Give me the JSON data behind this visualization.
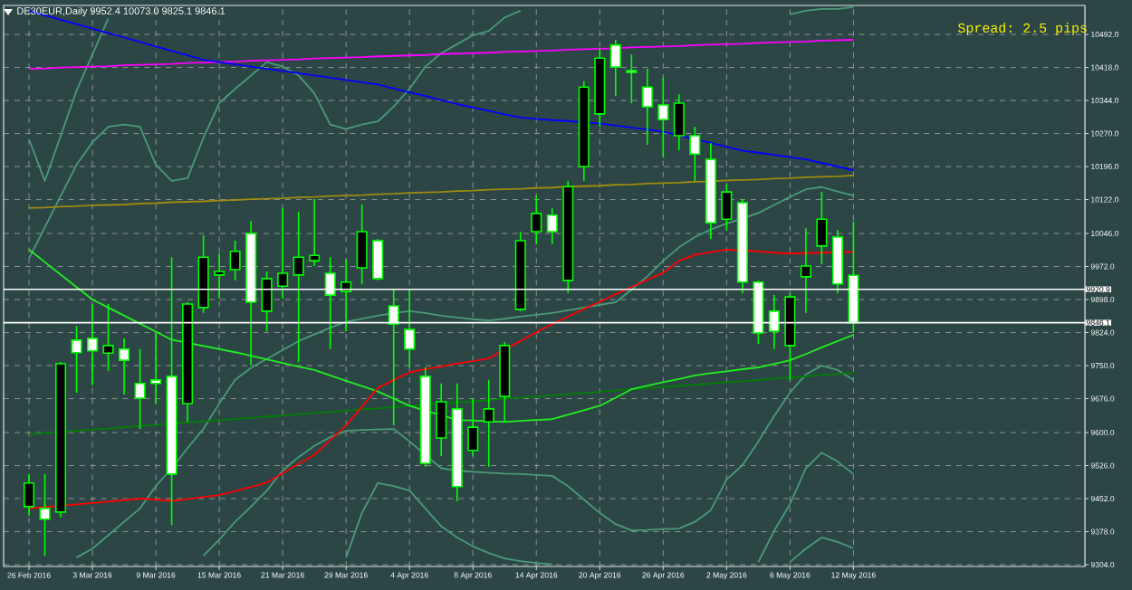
{
  "chart_data": {
    "type": "candlestick",
    "title": "DE30EUR,Daily  9952.4 10073.0 9825.1 9846.1",
    "annotations": [
      "Spread: 2.5 pips"
    ],
    "categories": [
      "26 Feb 2016",
      null,
      null,
      null,
      "3 Mar 2016",
      null,
      null,
      null,
      "9 Mar 2016",
      null,
      null,
      null,
      "15 Mar 2016",
      null,
      null,
      null,
      "21 Mar 2016",
      null,
      null,
      null,
      "29 Mar 2016",
      null,
      null,
      null,
      "4 Apr 2016",
      null,
      null,
      null,
      "8 Apr 2016",
      null,
      null,
      null,
      "14 Apr 2016",
      null,
      null,
      null,
      "20 Apr 2016",
      null,
      null,
      null,
      "26 Apr 2016",
      null,
      null,
      null,
      "2 May 2016",
      null,
      null,
      null,
      "6 May 2016",
      null,
      null,
      null,
      "12 May 2016"
    ],
    "ylim": [
      9300,
      10557
    ],
    "yticks": [
      {
        "value": 10492,
        "label": "10492.0"
      },
      {
        "value": 10418,
        "label": "10418.0"
      },
      {
        "value": 10344,
        "label": "10344.0"
      },
      {
        "value": 10270,
        "label": "10270.0"
      },
      {
        "value": 10196,
        "label": "10196.0"
      },
      {
        "value": 10122,
        "label": "10122.0"
      },
      {
        "value": 10046,
        "label": "10046.0"
      },
      {
        "value": 9972,
        "label": "9972.0"
      },
      {
        "value": 9898,
        "label": "9898.0"
      },
      {
        "value": 9824,
        "label": "9824.0"
      },
      {
        "value": 9750,
        "label": "9750.0"
      },
      {
        "value": 9676,
        "label": "9676.0"
      },
      {
        "value": 9600,
        "label": "9600.0"
      },
      {
        "value": 9526,
        "label": "9526.0"
      },
      {
        "value": 9452,
        "label": "9452.0"
      },
      {
        "value": 9378,
        "label": "9378.0"
      },
      {
        "value": 9304,
        "label": "9304.0"
      }
    ],
    "grid": true,
    "ref_lines": [
      {
        "axis": "y",
        "value": 9920.9,
        "label": "9920.9",
        "color": "#ffffff"
      },
      {
        "axis": "y",
        "value": 9846.1,
        "label": "9846.1",
        "color": "#ffffff"
      }
    ],
    "series": [
      {
        "type": "line",
        "color": "#4a9a78",
        "values": [
          10257,
          10164,
          10265,
          10366,
          10447,
          10528,
          null,
          null,
          null,
          null,
          null,
          null,
          null,
          null,
          null,
          null,
          null,
          null,
          null,
          null,
          null,
          null,
          null,
          null,
          null,
          null,
          null,
          null,
          null,
          null,
          null,
          null,
          null,
          null,
          null,
          null,
          null,
          null,
          null,
          null,
          null,
          null,
          null,
          null,
          null,
          null,
          null,
          null,
          null,
          null,
          null,
          null,
          null
        ]
      },
      {
        "type": "line",
        "color": "#4a9a78",
        "values": [
          9990,
          10060,
          10130,
          10200,
          10250,
          10285,
          10290,
          10285,
          10200,
          10164,
          10170,
          10260,
          10338,
          10370,
          10400,
          10430,
          10420,
          10400,
          10360,
          10290,
          10280,
          10290,
          10297,
          10330,
          10370,
          10420,
          10450,
          10470,
          10490,
          10500,
          10530,
          10545,
          null,
          null,
          null,
          null,
          null,
          null,
          null,
          null,
          null,
          null,
          null,
          null,
          null,
          null,
          null,
          null,
          10537,
          10545,
          10549,
          10549,
          10553
        ]
      },
      {
        "type": "line",
        "color": "#4a9a78",
        "values": [
          null,
          null,
          null,
          9320,
          9340,
          9370,
          9400,
          9430,
          9480,
          9520,
          9565,
          9608,
          9665,
          9718,
          9745,
          9765,
          9785,
          9805,
          9820,
          9835,
          9848,
          9855,
          9862,
          9868,
          9872,
          9868,
          9862,
          9858,
          9854,
          9851,
          9855,
          9860,
          9864,
          9868,
          9874,
          9880,
          9886,
          9892,
          9920,
          9950,
          9985,
          10015,
          10038,
          10055,
          10068,
          10080,
          10092,
          10110,
          10128,
          10145,
          10150,
          10140,
          10131
        ]
      },
      {
        "type": "line",
        "color": "#4a9a78",
        "values": [
          null,
          null,
          null,
          null,
          null,
          null,
          null,
          null,
          null,
          null,
          null,
          9324,
          9360,
          9400,
          9434,
          9470,
          9515,
          9545,
          9570,
          9590,
          9604,
          9606,
          9607,
          9608,
          9580,
          9550,
          9520,
          9515,
          9512,
          9510,
          9508,
          9507,
          9505,
          9503,
          9480,
          9450,
          9420,
          9395,
          9381,
          9382,
          9384,
          9385,
          9400,
          9426,
          9495,
          9527,
          9580,
          9637,
          9690,
          9730,
          9750,
          9740,
          9718
        ]
      },
      {
        "type": "line",
        "color": "#4a9a78",
        "values": [
          null,
          null,
          null,
          null,
          null,
          null,
          null,
          null,
          null,
          null,
          null,
          null,
          null,
          null,
          null,
          null,
          null,
          null,
          null,
          null,
          9320,
          9420,
          9487,
          9480,
          9470,
          9430,
          9390,
          9365,
          9345,
          9330,
          9318,
          9312,
          9308,
          9305,
          null,
          null,
          null,
          null,
          null,
          null,
          null,
          null,
          null,
          null,
          null,
          null,
          9310,
          9380,
          9440,
          9520,
          9555,
          9535,
          9507
        ]
      },
      {
        "type": "line",
        "color": "#4a9a78",
        "values": [
          null,
          null,
          null,
          null,
          null,
          null,
          null,
          null,
          null,
          null,
          null,
          null,
          null,
          null,
          null,
          null,
          null,
          null,
          null,
          null,
          null,
          null,
          null,
          null,
          null,
          null,
          null,
          null,
          null,
          null,
          null,
          null,
          null,
          null,
          null,
          null,
          null,
          null,
          null,
          null,
          null,
          null,
          null,
          null,
          null,
          null,
          null,
          null,
          9310,
          9340,
          9365,
          9355,
          9341
        ]
      },
      {
        "type": "line",
        "color": "#ff00ff",
        "values": [
          10415,
          10416,
          10418,
          10419,
          10420,
          10421,
          10423,
          10424,
          10425,
          10426,
          10428,
          10429,
          10430,
          10431,
          10433,
          10434,
          10435,
          10436,
          10438,
          10439,
          10440,
          10441,
          10443,
          10444,
          10445,
          10446,
          10448,
          10449,
          10450,
          10451,
          10453,
          10454,
          10455,
          10456,
          10458,
          10459,
          10460,
          10461,
          10463,
          10464,
          10465,
          10466,
          10468,
          10469,
          10470,
          10471,
          10473,
          10474,
          10475,
          10476,
          10478,
          10479,
          10480
        ]
      },
      {
        "type": "line",
        "color": "#0000ff",
        "values": [
          10545,
          10535,
          10525,
          10515,
          10505,
          10495,
          10485,
          10475,
          10465,
          10455,
          10445,
          10435,
          10430,
          10425,
          10420,
          10415,
          10410,
          10405,
          10400,
          10395,
          10390,
          10385,
          10380,
          10371,
          10362,
          10354,
          10345,
          10336,
          10328,
          10321,
          10313,
          10306,
          10303,
          10300,
          10298,
          10295,
          10292,
          10288,
          10283,
          10279,
          10274,
          10266,
          10257,
          10249,
          10240,
          10232,
          10227,
          10222,
          10217,
          10212,
          10204,
          10196,
          10188
        ]
      },
      {
        "type": "line",
        "color": "#a08a10",
        "values": [
          10103,
          10104,
          10106,
          10107,
          10109,
          10110,
          10111,
          10113,
          10114,
          10116,
          10117,
          10118,
          10120,
          10121,
          10123,
          10124,
          10125,
          10127,
          10128,
          10130,
          10131,
          10132,
          10134,
          10135,
          10137,
          10138,
          10139,
          10141,
          10142,
          10144,
          10145,
          10146,
          10148,
          10149,
          10151,
          10152,
          10153,
          10155,
          10156,
          10158,
          10159,
          10160,
          10162,
          10163,
          10165,
          10166,
          10167,
          10169,
          10170,
          10172,
          10173,
          10174,
          10176
        ]
      },
      {
        "type": "line",
        "color": "#008000",
        "values": [
          9596,
          9599,
          9601,
          9604,
          9607,
          9609,
          9612,
          9615,
          9617,
          9620,
          9623,
          9625,
          9628,
          9630,
          9633,
          9636,
          9638,
          9641,
          9644,
          9646,
          9649,
          9652,
          9654,
          9657,
          9660,
          9662,
          9665,
          9668,
          9670,
          9673,
          9676,
          9678,
          9681,
          9683,
          9686,
          9689,
          9691,
          9694,
          9697,
          9699,
          9702,
          9705,
          9707,
          9710,
          9713,
          9715,
          9718,
          9721,
          9723,
          9726,
          9729,
          9731,
          9734
        ]
      },
      {
        "type": "line",
        "color": "#22ee22",
        "values": [
          10010,
          9982,
          9954,
          9926,
          9898,
          9880,
          9862,
          9844,
          9826,
          9808,
          9801,
          9794,
          9787,
          9780,
          9772,
          9764,
          9756,
          9748,
          9740,
          9728,
          9716,
          9704,
          9692,
          9676,
          9660,
          9649,
          9639,
          9628,
          9627,
          9625,
          9624,
          9626,
          9628,
          9630,
          9640,
          9650,
          9660,
          9678,
          9697,
          9705,
          9713,
          9720,
          9728,
          9733,
          9737,
          9742,
          9746,
          9754,
          9762,
          9776,
          9791,
          9805,
          9819
        ]
      },
      {
        "type": "line",
        "color": "#ff0000",
        "values": [
          9430,
          9433,
          9436,
          9439,
          9442,
          9445,
          9449,
          9452,
          9450,
          9447,
          9451,
          9456,
          9460,
          9469,
          9478,
          9488,
          9509,
          9530,
          9550,
          9583,
          9616,
          9658,
          9700,
          9718,
          9735,
          9742,
          9748,
          9755,
          9760,
          9766,
          9786,
          9805,
          9825,
          9843,
          9860,
          9877,
          9893,
          9910,
          9926,
          9942,
          9958,
          9985,
          9998,
          10004,
          10010,
          10008,
          10006,
          10003,
          10001,
          10002,
          10003,
          10004,
          10005
        ]
      },
      {
        "color": "#00ff00",
        "ohlc": [
          [
            9434,
            9507,
            9414,
            9487
          ],
          [
            9430,
            9507,
            9324,
            9406
          ],
          [
            9422,
            9758,
            9410,
            9754
          ],
          [
            9807,
            9839,
            9689,
            9779
          ],
          [
            9811,
            9888,
            9706,
            9783
          ],
          [
            9778,
            9888,
            9738,
            9795
          ],
          [
            9787,
            9811,
            9685,
            9762
          ],
          [
            9710,
            9787,
            9608,
            9677
          ],
          [
            9718,
            9827,
            9665,
            9710
          ],
          [
            9726,
            9993,
            9393,
            9507
          ],
          [
            9665,
            9892,
            9624,
            9888
          ],
          [
            9880,
            10042,
            9868,
            9993
          ],
          [
            9953,
            10001,
            9900,
            9961
          ],
          [
            9965,
            10030,
            9941,
            10006
          ],
          [
            10046,
            10074,
            9750,
            9892
          ],
          [
            9872,
            9961,
            9827,
            9945
          ],
          [
            9928,
            10103,
            9900,
            9957
          ],
          [
            9953,
            10095,
            9758,
            9993
          ],
          [
            9985,
            10123,
            9973,
            9997
          ],
          [
            9957,
            9993,
            9787,
            9908
          ],
          [
            9916,
            9989,
            9827,
            9937
          ],
          [
            9969,
            10111,
            9933,
            10050
          ],
          [
            10030,
            10034,
            9941,
            9945
          ],
          [
            9884,
            9920,
            9616,
            9843
          ],
          [
            9831,
            9920,
            9746,
            9787
          ],
          [
            9726,
            9746,
            9523,
            9531
          ],
          [
            9588,
            9710,
            9547,
            9669
          ],
          [
            9653,
            9710,
            9446,
            9479
          ],
          [
            9560,
            9677,
            9547,
            9612
          ],
          [
            9624,
            9718,
            9523,
            9653
          ],
          [
            9681,
            9803,
            9624,
            9795
          ],
          [
            9876,
            10050,
            9872,
            10030
          ],
          [
            10050,
            10131,
            10022,
            10091
          ],
          [
            10087,
            10103,
            10022,
            10050
          ],
          [
            9941,
            10164,
            9912,
            10151
          ],
          [
            10196,
            10387,
            10164,
            10374
          ],
          [
            10314,
            10460,
            10285,
            10439
          ],
          [
            10468,
            10480,
            10354,
            10419
          ],
          [
            10411,
            10447,
            10338,
            10407
          ],
          [
            10374,
            10415,
            10245,
            10330
          ],
          [
            10334,
            10395,
            10216,
            10301
          ],
          [
            10265,
            10358,
            10233,
            10338
          ],
          [
            10265,
            10285,
            10164,
            10224
          ],
          [
            10212,
            10249,
            10034,
            10070
          ],
          [
            10078,
            10156,
            10054,
            10139
          ],
          [
            10115,
            10123,
            9912,
            9937
          ],
          [
            9937,
            9941,
            9799,
            9823
          ],
          [
            9872,
            9908,
            9787,
            9827
          ],
          [
            9795,
            9912,
            9718,
            9904
          ],
          [
            9949,
            10058,
            9868,
            9973
          ],
          [
            10018,
            10139,
            9977,
            10078
          ],
          [
            10038,
            10054,
            9912,
            9933
          ],
          [
            9952.4,
            10073.0,
            9825.1,
            9846.1
          ]
        ]
      }
    ]
  }
}
